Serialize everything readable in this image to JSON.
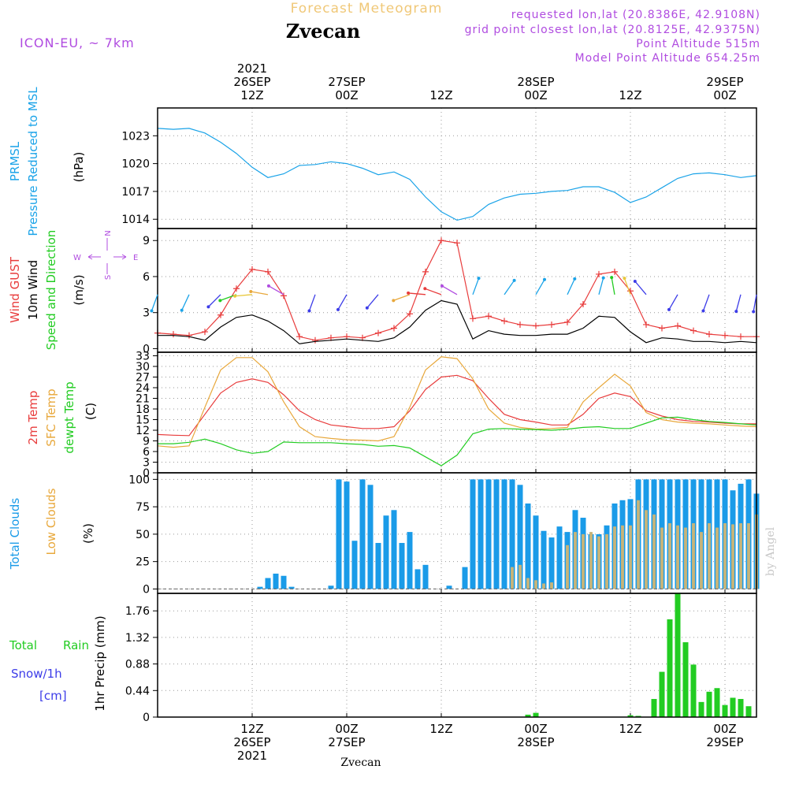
{
  "header": {
    "product": "Forecast Meteogram",
    "location": "Zvecan",
    "model": "ICON-EU, ~ 7km",
    "requested": "requested lon,lat (20.8386E, 42.9108N)",
    "gridpoint": "grid point closest lon,lat (20.8125E, 42.9375N)",
    "point_alt": "Point Altitude 515m",
    "model_alt": "Model Point Altitude 654.25m",
    "footer": "Zvecan",
    "watermark": "by Angel"
  },
  "time_axis": {
    "top_labels": [
      {
        "h": 12,
        "lines": [
          "2021",
          "26SEP",
          "12Z"
        ]
      },
      {
        "h": 24,
        "lines": [
          "27SEP",
          "00Z"
        ]
      },
      {
        "h": 36,
        "lines": [
          "12Z"
        ]
      },
      {
        "h": 48,
        "lines": [
          "28SEP",
          "00Z"
        ]
      },
      {
        "h": 60,
        "lines": [
          "12Z"
        ]
      },
      {
        "h": 72,
        "lines": [
          "29SEP",
          "00Z"
        ]
      }
    ],
    "bottom_labels": [
      {
        "h": 12,
        "lines": [
          "12Z",
          "26SEP",
          "2021"
        ]
      },
      {
        "h": 24,
        "lines": [
          "00Z",
          "27SEP"
        ]
      },
      {
        "h": 36,
        "lines": [
          "12Z"
        ]
      },
      {
        "h": 48,
        "lines": [
          "00Z",
          "28SEP"
        ]
      },
      {
        "h": 60,
        "lines": [
          "12Z"
        ]
      },
      {
        "h": 72,
        "lines": [
          "00Z",
          "29SEP"
        ]
      }
    ]
  },
  "colors": {
    "pressure": "#1aa3e8",
    "gust": "#e83c3c",
    "wind": "#000000",
    "temp2m": "#e83c3c",
    "sfc": "#e8a83c",
    "dewpt": "#22cc22",
    "total_clouds": "#1a9be8",
    "low_clouds": "#c8b478",
    "rain": "#22cc22",
    "snow": "#3c3ce8",
    "compass": "#b04ce0",
    "header_gold": "#f0c878",
    "header_purple": "#b04ce0"
  },
  "panels": {
    "pressure": {
      "labels": [
        "PRMSL",
        "Pressure Reduced to MSL"
      ],
      "unit": "(hPa)"
    },
    "wind": {
      "labels": [
        "Wind GUST",
        "10m Wind",
        "Speed and Direction"
      ],
      "unit": "(m/s)",
      "compass": {
        "n": "N",
        "s": "S",
        "w": "W",
        "e": "E"
      }
    },
    "temp": {
      "labels": [
        "2m Temp",
        "SFC Temp",
        "dewpt Temp"
      ],
      "unit": "(C)"
    },
    "clouds": {
      "labels": [
        "Total Clouds",
        "Low Clouds"
      ],
      "unit": "(%)"
    },
    "precip": {
      "labels": [
        "Total",
        "Rain",
        "Snow/1h",
        "[cm]"
      ],
      "unit": "1hr Precip (mm)"
    }
  },
  "chart_data": [
    {
      "type": "line",
      "title": "Pressure Reduced to MSL",
      "ylabel": "hPa",
      "ylim": [
        1013,
        1026
      ],
      "yticks": [
        1014,
        1017,
        1020,
        1023
      ],
      "x": [
        0,
        2,
        4,
        6,
        8,
        10,
        12,
        14,
        16,
        18,
        20,
        22,
        24,
        26,
        28,
        30,
        32,
        34,
        36,
        38,
        40,
        42,
        44,
        46,
        48,
        50,
        52,
        54,
        56,
        58,
        60,
        62,
        64,
        66,
        68,
        70,
        72,
        74,
        76
      ],
      "series": [
        {
          "name": "PRMSL",
          "values": [
            1023.8,
            1023.7,
            1023.8,
            1023.3,
            1022.3,
            1021.1,
            1019.6,
            1018.5,
            1018.9,
            1019.8,
            1019.9,
            1020.2,
            1020.0,
            1019.5,
            1018.8,
            1019.1,
            1018.3,
            1016.4,
            1014.8,
            1013.9,
            1014.3,
            1015.6,
            1016.3,
            1016.7,
            1016.8,
            1017.0,
            1017.1,
            1017.5,
            1017.5,
            1016.9,
            1015.8,
            1016.4,
            1017.4,
            1018.4,
            1018.9,
            1019.0,
            1018.8,
            1018.5,
            1018.7
          ]
        }
      ]
    },
    {
      "type": "line",
      "title": "10m Wind and Wind Gust",
      "ylabel": "m/s",
      "ylim": [
        -0.3,
        10
      ],
      "yticks": [
        0,
        3,
        6,
        9
      ],
      "x": [
        0,
        2,
        4,
        6,
        8,
        10,
        12,
        14,
        16,
        18,
        20,
        22,
        24,
        26,
        28,
        30,
        32,
        34,
        36,
        38,
        40,
        42,
        44,
        46,
        48,
        50,
        52,
        54,
        56,
        58,
        60,
        62,
        64,
        66,
        68,
        70,
        72,
        74,
        76
      ],
      "series": [
        {
          "name": "Wind GUST",
          "values": [
            1.3,
            1.2,
            1.1,
            1.4,
            2.8,
            5.0,
            6.6,
            6.4,
            4.4,
            1.0,
            0.7,
            0.9,
            1.0,
            0.9,
            1.3,
            1.7,
            2.9,
            6.4,
            9.0,
            8.8,
            2.5,
            2.7,
            2.3,
            2.0,
            1.9,
            2.0,
            2.2,
            3.7,
            6.2,
            6.4,
            4.8,
            2.0,
            1.7,
            1.9,
            1.5,
            1.2,
            1.1,
            1.0,
            1.0
          ]
        },
        {
          "name": "10m Wind",
          "values": [
            1.1,
            1.1,
            1.0,
            0.7,
            1.8,
            2.6,
            2.8,
            2.3,
            1.5,
            0.4,
            0.6,
            0.7,
            0.8,
            0.7,
            0.6,
            0.9,
            1.8,
            3.2,
            4.0,
            3.7,
            0.8,
            1.5,
            1.2,
            1.1,
            1.1,
            1.2,
            1.2,
            1.7,
            2.7,
            2.6,
            1.4,
            0.5,
            0.9,
            0.8,
            0.6,
            0.6,
            0.5,
            0.6,
            0.5
          ]
        }
      ]
    },
    {
      "type": "line",
      "title": "Temperatures",
      "ylabel": "C",
      "ylim": [
        0,
        34
      ],
      "yticks": [
        0,
        3,
        6,
        9,
        12,
        15,
        18,
        21,
        24,
        27,
        30,
        33
      ],
      "x": [
        0,
        2,
        4,
        6,
        8,
        10,
        12,
        14,
        16,
        18,
        20,
        22,
        24,
        26,
        28,
        30,
        32,
        34,
        36,
        38,
        40,
        42,
        44,
        46,
        48,
        50,
        52,
        54,
        56,
        58,
        60,
        62,
        64,
        66,
        68,
        70,
        72,
        74,
        76
      ],
      "series": [
        {
          "name": "2m Temp",
          "values": [
            10.8,
            10.6,
            10.5,
            16.5,
            22.5,
            25.5,
            26.5,
            25.5,
            22.0,
            17.5,
            15.0,
            13.5,
            13.0,
            12.5,
            12.5,
            13.0,
            17.5,
            23.5,
            27.0,
            27.5,
            26.0,
            21.0,
            16.5,
            15.0,
            14.3,
            13.5,
            13.5,
            16.5,
            21.0,
            22.5,
            21.5,
            17.5,
            16.0,
            15.0,
            14.5,
            14.3,
            14.0,
            13.8,
            13.8
          ]
        },
        {
          "name": "SFC Temp",
          "values": [
            7.6,
            7.2,
            7.6,
            18.5,
            29.0,
            32.5,
            32.5,
            28.5,
            20.0,
            13.0,
            10.2,
            9.7,
            9.3,
            9.2,
            9.0,
            10.2,
            18.5,
            29.0,
            32.7,
            32.2,
            26.5,
            18.0,
            14.0,
            12.8,
            12.3,
            12.5,
            12.8,
            20.0,
            24.0,
            27.8,
            24.5,
            17.0,
            15.0,
            14.3,
            14.0,
            13.8,
            13.5,
            13.2,
            13.0
          ]
        },
        {
          "name": "dewpt Temp",
          "values": [
            8.2,
            8.2,
            8.6,
            9.5,
            8.2,
            6.5,
            5.5,
            6.0,
            8.7,
            8.5,
            8.5,
            8.5,
            8.2,
            8.0,
            7.5,
            7.7,
            7.0,
            4.5,
            2.0,
            5.0,
            11.0,
            12.3,
            12.5,
            12.3,
            12.2,
            12.0,
            12.3,
            12.8,
            13.0,
            12.5,
            12.5,
            14.0,
            15.5,
            15.7,
            15.0,
            14.5,
            14.2,
            13.8,
            13.5
          ]
        }
      ]
    },
    {
      "type": "bar",
      "title": "Clouds",
      "ylabel": "%",
      "ylim": [
        -4,
        106
      ],
      "yticks": [
        0,
        25,
        50,
        75,
        100
      ],
      "x": [
        0,
        1,
        2,
        3,
        4,
        5,
        6,
        7,
        8,
        9,
        10,
        11,
        12,
        13,
        14,
        15,
        16,
        17,
        18,
        19,
        20,
        21,
        22,
        23,
        24,
        25,
        26,
        27,
        28,
        29,
        30,
        31,
        32,
        33,
        34,
        35,
        36,
        37,
        38,
        39,
        40,
        41,
        42,
        43,
        44,
        45,
        46,
        47,
        48,
        49,
        50,
        51,
        52,
        53,
        54,
        55,
        56,
        57,
        58,
        59,
        60,
        61,
        62,
        63,
        64,
        65,
        66,
        67,
        68,
        69,
        70,
        71,
        72,
        73,
        74,
        75,
        76
      ],
      "series": [
        {
          "name": "Total Clouds",
          "values": [
            0,
            0,
            0,
            0,
            0,
            0,
            0,
            0,
            0,
            0,
            0,
            0,
            0,
            2,
            10,
            14,
            12,
            2,
            0,
            0,
            0,
            0,
            3,
            100,
            98,
            44,
            100,
            95,
            42,
            67,
            72,
            42,
            52,
            18,
            22,
            0,
            0,
            3,
            0,
            20,
            100,
            100,
            100,
            100,
            100,
            100,
            95,
            78,
            67,
            53,
            47,
            57,
            52,
            72,
            65,
            50,
            50,
            58,
            78,
            81,
            82,
            100,
            100,
            100,
            100,
            100,
            100,
            100,
            100,
            100,
            100,
            100,
            100,
            90,
            96,
            100,
            87
          ]
        },
        {
          "name": "Low Clouds",
          "values": [
            0,
            0,
            0,
            0,
            0,
            0,
            0,
            0,
            0,
            0,
            0,
            0,
            0,
            0,
            0,
            0,
            0,
            0,
            0,
            0,
            0,
            0,
            0,
            0,
            0,
            0,
            0,
            0,
            0,
            0,
            0,
            0,
            0,
            0,
            0,
            0,
            0,
            0,
            0,
            0,
            0,
            0,
            0,
            0,
            0,
            20,
            22,
            10,
            8,
            5,
            6,
            0,
            40,
            52,
            50,
            52,
            48,
            50,
            57,
            58,
            58,
            81,
            72,
            68,
            56,
            60,
            58,
            56,
            60,
            52,
            60,
            56,
            60,
            59,
            60,
            60,
            68
          ]
        }
      ]
    },
    {
      "type": "bar",
      "title": "1hr Precip",
      "ylabel": "mm",
      "ylim": [
        0,
        2.05
      ],
      "yticks": [
        0,
        0.44,
        0.88,
        1.32,
        1.76
      ],
      "x": [
        0,
        1,
        2,
        3,
        4,
        5,
        6,
        7,
        8,
        9,
        10,
        11,
        12,
        13,
        14,
        15,
        16,
        17,
        18,
        19,
        20,
        21,
        22,
        23,
        24,
        25,
        26,
        27,
        28,
        29,
        30,
        31,
        32,
        33,
        34,
        35,
        36,
        37,
        38,
        39,
        40,
        41,
        42,
        43,
        44,
        45,
        46,
        47,
        48,
        49,
        50,
        51,
        52,
        53,
        54,
        55,
        56,
        57,
        58,
        59,
        60,
        61,
        62,
        63,
        64,
        65,
        66,
        67,
        68,
        69,
        70,
        71,
        72,
        73,
        74,
        75,
        76
      ],
      "series": [
        {
          "name": "Total Rain",
          "values": [
            0,
            0,
            0,
            0,
            0,
            0,
            0,
            0,
            0,
            0,
            0,
            0,
            0,
            0,
            0,
            0,
            0,
            0,
            0,
            0,
            0,
            0,
            0,
            0,
            0,
            0,
            0,
            0,
            0,
            0,
            0,
            0,
            0,
            0,
            0,
            0,
            0,
            0,
            0,
            0,
            0,
            0,
            0,
            0,
            0,
            0,
            0,
            0.04,
            0.07,
            0,
            0,
            0,
            0,
            0,
            0,
            0,
            0,
            0,
            0,
            0,
            0.03,
            0.02,
            0,
            0.3,
            0.75,
            1.62,
            2.06,
            1.24,
            0.87,
            0.25,
            0.42,
            0.48,
            0.2,
            0.32,
            0.3,
            0.18,
            0
          ]
        }
      ]
    }
  ]
}
